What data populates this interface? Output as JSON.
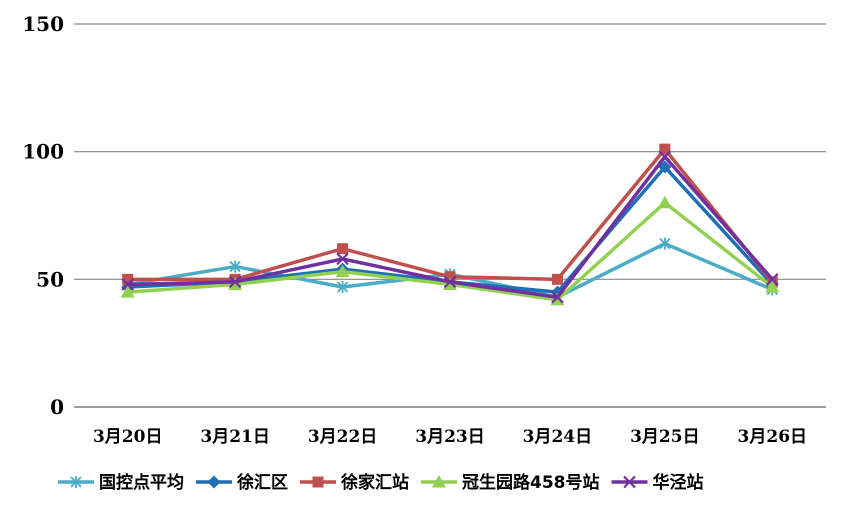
{
  "chart_data": {
    "type": "line",
    "title": "",
    "xlabel": "",
    "ylabel": "",
    "categories": [
      "3月20日",
      "3月21日",
      "3月22日",
      "3月23日",
      "3月24日",
      "3月25日",
      "3月26日"
    ],
    "ylim": [
      0,
      150
    ],
    "yticks": [
      "0",
      "50",
      "100",
      "150"
    ],
    "grid": "horizontal",
    "legend_position": "bottom",
    "series": [
      {
        "name": "国控点平均",
        "color": "#4BACC6",
        "marker": "star",
        "values": [
          48,
          55,
          47,
          52,
          43,
          64,
          46
        ]
      },
      {
        "name": "徐汇区",
        "color": "#1F6FB6",
        "marker": "diamond",
        "values": [
          47,
          49,
          54,
          49,
          45,
          94,
          48
        ]
      },
      {
        "name": "徐家汇站",
        "color": "#C0504D",
        "marker": "square",
        "values": [
          50,
          50,
          62,
          51,
          50,
          101,
          49
        ]
      },
      {
        "name": "冠生园路458号站",
        "color": "#92D050",
        "marker": "triangle",
        "values": [
          45,
          48,
          53,
          48,
          42,
          80,
          47
        ]
      },
      {
        "name": "华泾站",
        "color": "#7030A0",
        "marker": "x",
        "values": [
          48,
          49,
          58,
          49,
          43,
          98,
          50
        ]
      }
    ]
  }
}
